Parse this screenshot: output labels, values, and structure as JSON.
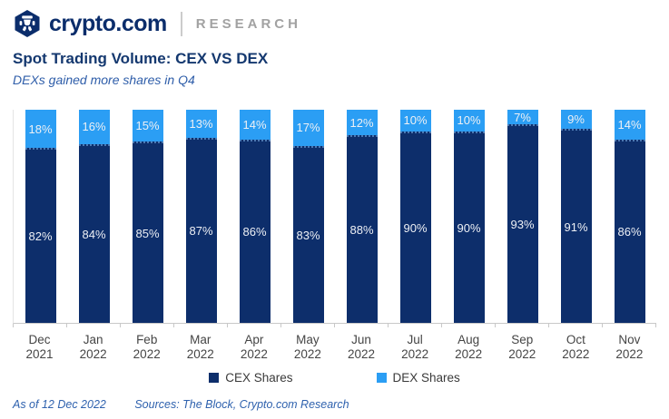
{
  "header": {
    "brand": "crypto.com",
    "suffix": "RESEARCH"
  },
  "title": "Spot Trading Volume: CEX VS DEX",
  "subtitle": "DEXs gained more shares in Q4",
  "footer": {
    "as_of": "As of 12 Dec 2022",
    "sources": "Sources: The Block, Crypto.com Research"
  },
  "colors": {
    "cex_navy": "#0d2e6b",
    "dex_blue": "#2b9ef4",
    "title_navy": "#14386f",
    "subtitle_blue": "#2e5da9",
    "research_gray": "#a2a2a2",
    "axis_gray": "#c8c8c8"
  },
  "legend": [
    {
      "label": "CEX Shares",
      "color": "#0d2e6b"
    },
    {
      "label": "DEX Shares",
      "color": "#2b9ef4"
    }
  ],
  "chart_data": {
    "type": "bar",
    "stacked": true,
    "title": "Spot Trading Volume: CEX VS DEX",
    "subtitle": "DEXs gained more shares in Q4",
    "categories": [
      "Dec 2021",
      "Jan 2022",
      "Feb 2022",
      "Mar 2022",
      "Apr 2022",
      "May 2022",
      "Jun 2022",
      "Jul 2022",
      "Aug 2022",
      "Sep 2022",
      "Oct 2022",
      "Nov 2022"
    ],
    "series": [
      {
        "name": "CEX Shares",
        "color": "#0d2e6b",
        "values": [
          82,
          84,
          85,
          87,
          86,
          83,
          88,
          90,
          90,
          93,
          91,
          86
        ]
      },
      {
        "name": "DEX Shares",
        "color": "#2b9ef4",
        "values": [
          18,
          16,
          15,
          13,
          14,
          17,
          12,
          10,
          10,
          7,
          9,
          14
        ]
      }
    ],
    "value_suffix": "%",
    "ylim": [
      0,
      100
    ],
    "grid": false,
    "legend_position": "bottom"
  }
}
